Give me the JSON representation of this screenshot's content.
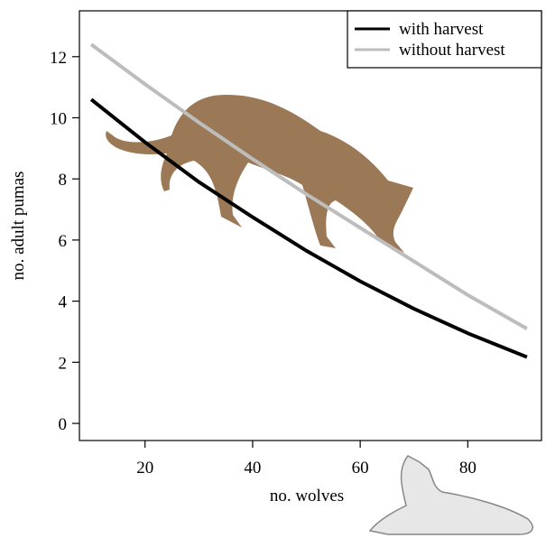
{
  "chart_data": {
    "type": "line",
    "xlabel": "no. wolves",
    "ylabel": "no. adult pumas",
    "x": [
      10,
      20,
      30,
      40,
      50,
      60,
      70,
      80,
      91
    ],
    "series": [
      {
        "name": "with harvest",
        "color": "#000000",
        "values": [
          10.6,
          9.2,
          7.9,
          6.75,
          5.65,
          4.65,
          3.75,
          2.95,
          2.17
        ]
      },
      {
        "name": "without harvest",
        "color": "#bdbdbd",
        "values": [
          12.4,
          11.1,
          9.85,
          8.65,
          7.5,
          6.4,
          5.3,
          4.2,
          3.1
        ]
      }
    ],
    "xlim": [
      7.8,
      93.7
    ],
    "xticks": [
      20,
      40,
      60,
      80
    ],
    "ylim": [
      -0.56,
      13.5
    ],
    "yticks": [
      0,
      2,
      4,
      6,
      8,
      10,
      12
    ],
    "legend": "top-right"
  }
}
